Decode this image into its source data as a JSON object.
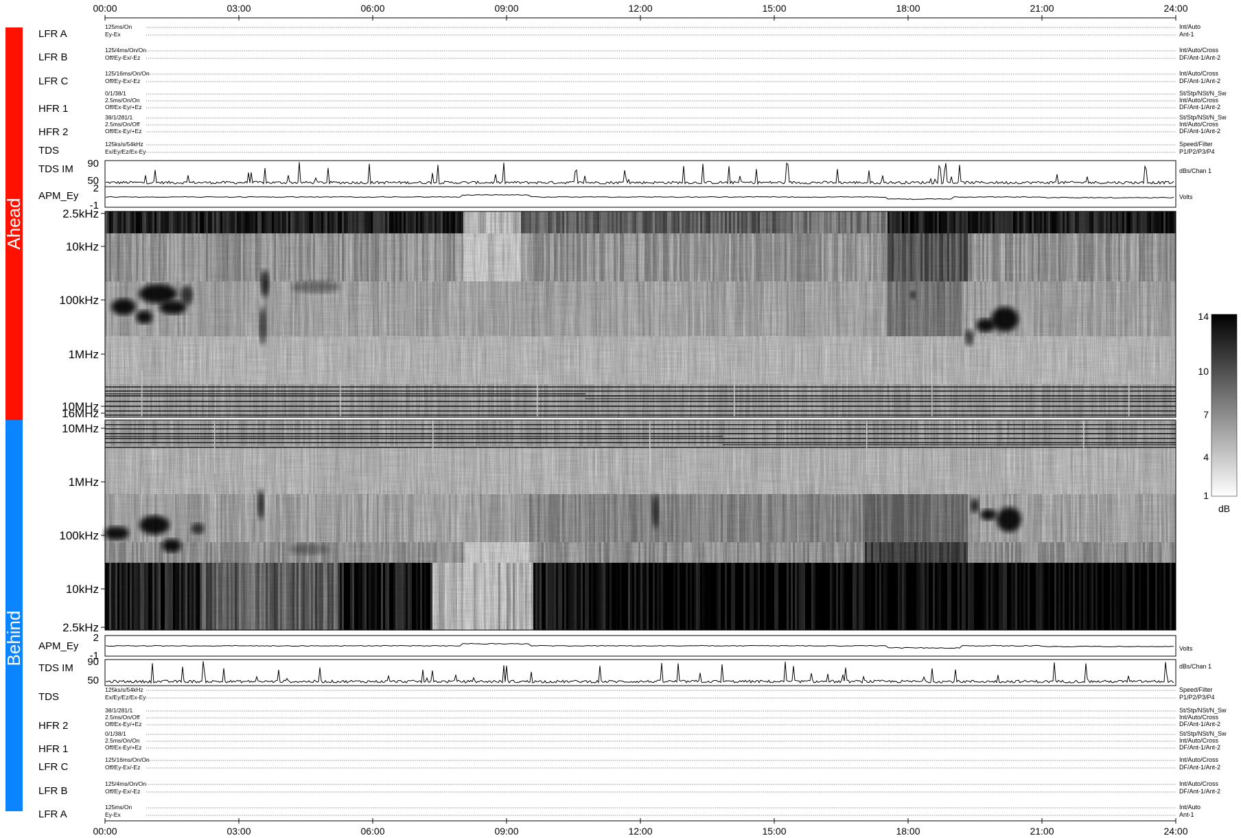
{
  "colors": {
    "ahead": "#ff1100",
    "behind": "#0a84ff"
  },
  "sides": {
    "ahead": {
      "name": "Ahead",
      "rows": [
        {
          "label": "LFR A",
          "left": [
            "125ms/On",
            "Ey-Ex"
          ],
          "right": [
            "Int/Auto",
            "Ant-1"
          ]
        },
        {
          "label": "LFR B",
          "left": [
            "125/4ms/On/On",
            "Off/Ey-Ex/-Ez"
          ],
          "right": [
            "Int/Auto/Cross",
            "DF/Ant-1/Ant-2"
          ]
        },
        {
          "label": "LFR C",
          "left": [
            "125/16ms/On/On",
            "Off/Ey-Ex/-Ez"
          ],
          "right": [
            "Int/Auto/Cross",
            "DF/Ant-1/Ant-2"
          ]
        },
        {
          "label": "HFR 1",
          "left": [
            "0/1/38/1",
            "2.5ms/On/On",
            "Off/Ex-Ey/+Ez"
          ],
          "right": [
            "St/Stp/NSt/N_Sw",
            "Int/Auto/Cross",
            "DF/Ant-1/Ant-2"
          ]
        },
        {
          "label": "HFR 2",
          "left": [
            "38/1/281/1",
            "2.5ms/On/Off",
            "Off/Ex-Ey/+Ez"
          ],
          "right": [
            "St/Stp/NSt/N_Sw",
            "Int/Auto/Cross",
            "DF/Ant-1/Ant-2"
          ]
        },
        {
          "label": "TDS",
          "left": [
            "125ks/s/54kHz",
            "Ex/Ey/Ez/Ex-Ey"
          ],
          "right": [
            "Speed/Filter",
            "P1/P2/P3/P4"
          ]
        }
      ],
      "tds_im": {
        "label": "TDS IM",
        "ticks": [
          "90",
          "50"
        ],
        "unit": "dBs/Chan 1"
      },
      "apm": {
        "label": "APM_Ey",
        "ticks": [
          "2",
          "-1"
        ],
        "unit": "Volts"
      },
      "freq_ticks": [
        "2.5kHz",
        "10kHz",
        "100kHz",
        "1MHz",
        "10MHz",
        "16MHz"
      ]
    },
    "behind": {
      "name": "Behind",
      "rows": [
        {
          "label": "TDS",
          "left": [
            "125ks/s/54kHz",
            "Ex/Ey/Ez/Ex-Ey"
          ],
          "right": [
            "Speed/Filter",
            "P1/P2/P3/P4"
          ]
        },
        {
          "label": "HFR 2",
          "left": [
            "38/1/281/1",
            "2.5ms/On/Off",
            "Off/Ex-Ey/+Ez"
          ],
          "right": [
            "St/Stp/NSt/N_Sw",
            "Int/Auto/Cross",
            "DF/Ant-1/Ant-2"
          ]
        },
        {
          "label": "HFR 1",
          "left": [
            "0/1/38/1",
            "2.5ms/On/On",
            "Off/Ex-Ey/+Ez"
          ],
          "right": [
            "St/Stp/NSt/N_Sw",
            "Int/Auto/Cross",
            "DF/Ant-1/Ant-2"
          ]
        },
        {
          "label": "LFR C",
          "left": [
            "125/16ms/On/On",
            "Off/Ey-Ex/-Ez"
          ],
          "right": [
            "Int/Auto/Cross",
            "DF/Ant-1/Ant-2"
          ]
        },
        {
          "label": "LFR B",
          "left": [
            "125/4ms/On/On",
            "Off/Ey-Ex/-Ez"
          ],
          "right": [
            "Int/Auto/Cross",
            "DF/Ant-1/Ant-2"
          ]
        },
        {
          "label": "LFR A",
          "left": [
            "125ms/On",
            "Ey-Ex"
          ],
          "right": [
            "Int/Auto",
            "Ant-1"
          ]
        }
      ],
      "tds_im": {
        "label": "TDS IM",
        "ticks": [
          "90",
          "50"
        ],
        "unit": "dBs/Chan 1"
      },
      "apm": {
        "label": "APM_Ey",
        "ticks": [
          "2",
          "-1"
        ],
        "unit": "Volts"
      },
      "freq_ticks": [
        "10MHz",
        "1MHz",
        "100kHz",
        "10kHz",
        "2.5kHz"
      ]
    }
  },
  "chart_data": {
    "type": "heatmap",
    "time_ticks": [
      "00:00",
      "03:00",
      "06:00",
      "09:00",
      "12:00",
      "15:00",
      "18:00",
      "21:00",
      "24:00"
    ],
    "x_range_hours": [
      0,
      24
    ],
    "colorbar": {
      "ticks": [
        "14",
        "10",
        "7",
        "4",
        "1"
      ],
      "range": [
        1,
        14
      ],
      "unit": "dB"
    },
    "apm_ey_level": {
      "ahead": 0.5,
      "behind": 0.5
    },
    "ahead_bursts": [
      {
        "start_h": 0.1,
        "end_h": 1.8,
        "freq": "100kHz-300kHz"
      },
      {
        "start_h": 3.4,
        "end_h": 3.7,
        "freq": "50kHz-1MHz"
      },
      {
        "start_h": 19.5,
        "end_h": 20.6,
        "freq": "200kHz-1MHz"
      }
    ],
    "behind_bursts": [
      {
        "start_h": 0.1,
        "end_h": 1.8,
        "freq": "100kHz-300kHz"
      },
      {
        "start_h": 19.5,
        "end_h": 20.6,
        "freq": "150kHz-500kHz"
      }
    ]
  }
}
